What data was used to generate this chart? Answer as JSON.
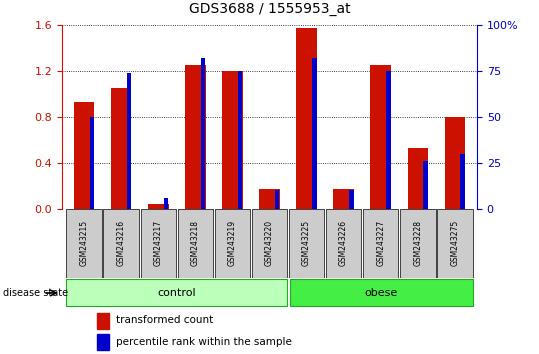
{
  "title": "GDS3688 / 1555953_at",
  "samples": [
    "GSM243215",
    "GSM243216",
    "GSM243217",
    "GSM243218",
    "GSM243219",
    "GSM243220",
    "GSM243225",
    "GSM243226",
    "GSM243227",
    "GSM243228",
    "GSM243275"
  ],
  "red_values": [
    0.93,
    1.05,
    0.04,
    1.25,
    1.2,
    0.17,
    1.57,
    0.17,
    1.25,
    0.53,
    0.8
  ],
  "blue_values_pct": [
    50,
    74,
    6,
    82,
    75,
    10,
    82,
    10,
    75,
    26,
    30
  ],
  "ylim_left": [
    0,
    1.6
  ],
  "ylim_right": [
    0,
    100
  ],
  "yticks_left": [
    0,
    0.4,
    0.8,
    1.2,
    1.6
  ],
  "yticks_right": [
    0,
    25,
    50,
    75,
    100
  ],
  "n_control": 6,
  "n_obese": 5,
  "red_color": "#CC1100",
  "blue_color": "#0000CC",
  "control_color": "#BBFFBB",
  "obese_color": "#44EE44",
  "tick_bg_color": "#CCCCCC",
  "title_fontsize": 10,
  "axis_fontsize": 8
}
